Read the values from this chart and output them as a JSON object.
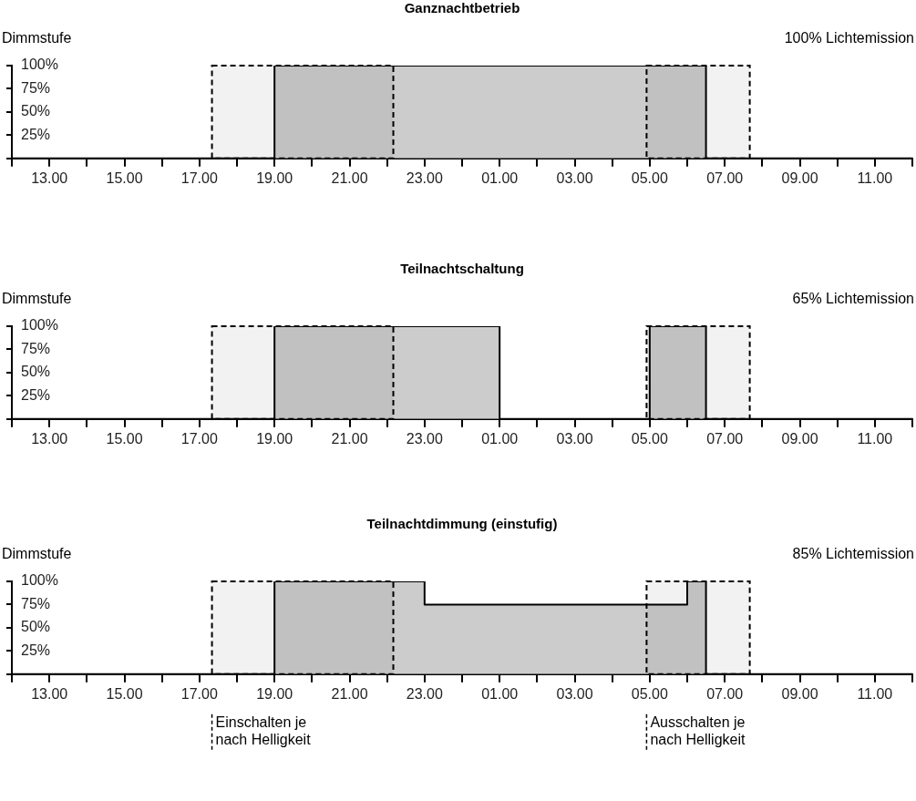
{
  "chart_data": [
    {
      "type": "area",
      "title": "Ganznachtbetrieb",
      "ylabel": "Dimmstufe",
      "annotations": [
        "100% Lichtemission"
      ],
      "x": [
        "2000-01-01T12:00",
        "2000-01-01T19:00",
        "2000-01-01T19:00",
        "2000-01-02T06:30",
        "2000-01-02T06:30",
        "2000-01-02T12:00"
      ],
      "series": [
        {
          "color": "#cccccc",
          "values": [
            0,
            0,
            100,
            100,
            0,
            0
          ]
        }
      ],
      "xlim": [
        "2000-01-01T12:00",
        "2000-01-02T12:00"
      ],
      "ylim": [
        0,
        100
      ],
      "xticks": [
        {
          "value": "2000-01-01T12:00",
          "label": null
        },
        {
          "value": "2000-01-01T13:00",
          "label": "13.00"
        },
        {
          "value": "2000-01-01T14:00",
          "label": null
        },
        {
          "value": "2000-01-01T15:00",
          "label": "15.00"
        },
        {
          "value": "2000-01-01T16:00",
          "label": null
        },
        {
          "value": "2000-01-01T17:00",
          "label": "17.00"
        },
        {
          "value": "2000-01-01T18:00",
          "label": null
        },
        {
          "value": "2000-01-01T19:00",
          "label": "19.00"
        },
        {
          "value": "2000-01-01T20:00",
          "label": null
        },
        {
          "value": "2000-01-01T21:00",
          "label": "21.00"
        },
        {
          "value": "2000-01-01T22:00",
          "label": null
        },
        {
          "value": "2000-01-01T23:00",
          "label": "23.00"
        },
        {
          "value": "2000-01-02T00:00",
          "label": null
        },
        {
          "value": "2000-01-02T01:00",
          "label": "01.00"
        },
        {
          "value": "2000-01-02T02:00",
          "label": null
        },
        {
          "value": "2000-01-02T03:00",
          "label": "03.00"
        },
        {
          "value": "2000-01-02T04:00",
          "label": null
        },
        {
          "value": "2000-01-02T05:00",
          "label": "05.00"
        },
        {
          "value": "2000-01-02T06:00",
          "label": null
        },
        {
          "value": "2000-01-02T07:00",
          "label": "07.00"
        },
        {
          "value": "2000-01-02T08:00",
          "label": null
        },
        {
          "value": "2000-01-02T09:00",
          "label": "09.00"
        },
        {
          "value": "2000-01-02T10:00",
          "label": null
        },
        {
          "value": "2000-01-02T11:00",
          "label": "11.00"
        },
        {
          "value": "2000-01-02T12:00",
          "label": null
        }
      ],
      "yticks": [
        {
          "value": 0,
          "label": null
        },
        {
          "value": 25,
          "label": "25%"
        },
        {
          "value": 50,
          "label": "50%"
        },
        {
          "value": 75,
          "label": "75%"
        },
        {
          "value": 100,
          "label": "100%"
        }
      ],
      "bands": [
        {
          "axis": "x",
          "from": "2000-01-01T17:20",
          "to": "2000-01-01T22:10"
        },
        {
          "axis": "x",
          "from": "2000-01-02T04:55",
          "to": "2000-01-02T07:40"
        }
      ],
      "grid": false,
      "legend": false
    },
    {
      "type": "area",
      "title": "Teilnachtschaltung",
      "ylabel": "Dimmstufe",
      "annotations": [
        "65% Lichtemission"
      ],
      "x": [
        "2000-01-01T12:00",
        "2000-01-01T19:00",
        "2000-01-01T19:00",
        "2000-01-02T01:00",
        "2000-01-02T01:00",
        "2000-01-02T05:00",
        "2000-01-02T05:00",
        "2000-01-02T06:30",
        "2000-01-02T06:30",
        "2000-01-02T12:00"
      ],
      "series": [
        {
          "color": "#cccccc",
          "values": [
            0,
            0,
            100,
            100,
            0,
            0,
            100,
            100,
            0,
            0
          ]
        }
      ],
      "xlim": [
        "2000-01-01T12:00",
        "2000-01-02T12:00"
      ],
      "ylim": [
        0,
        100
      ],
      "xticks": [
        {
          "value": "2000-01-01T12:00",
          "label": null
        },
        {
          "value": "2000-01-01T13:00",
          "label": "13.00"
        },
        {
          "value": "2000-01-01T14:00",
          "label": null
        },
        {
          "value": "2000-01-01T15:00",
          "label": "15.00"
        },
        {
          "value": "2000-01-01T16:00",
          "label": null
        },
        {
          "value": "2000-01-01T17:00",
          "label": "17.00"
        },
        {
          "value": "2000-01-01T18:00",
          "label": null
        },
        {
          "value": "2000-01-01T19:00",
          "label": "19.00"
        },
        {
          "value": "2000-01-01T20:00",
          "label": null
        },
        {
          "value": "2000-01-01T21:00",
          "label": "21.00"
        },
        {
          "value": "2000-01-01T22:00",
          "label": null
        },
        {
          "value": "2000-01-01T23:00",
          "label": "23.00"
        },
        {
          "value": "2000-01-02T00:00",
          "label": null
        },
        {
          "value": "2000-01-02T01:00",
          "label": "01.00"
        },
        {
          "value": "2000-01-02T02:00",
          "label": null
        },
        {
          "value": "2000-01-02T03:00",
          "label": "03.00"
        },
        {
          "value": "2000-01-02T04:00",
          "label": null
        },
        {
          "value": "2000-01-02T05:00",
          "label": "05.00"
        },
        {
          "value": "2000-01-02T06:00",
          "label": null
        },
        {
          "value": "2000-01-02T07:00",
          "label": "07.00"
        },
        {
          "value": "2000-01-02T08:00",
          "label": null
        },
        {
          "value": "2000-01-02T09:00",
          "label": "09.00"
        },
        {
          "value": "2000-01-02T10:00",
          "label": null
        },
        {
          "value": "2000-01-02T11:00",
          "label": "11.00"
        },
        {
          "value": "2000-01-02T12:00",
          "label": null
        }
      ],
      "yticks": [
        {
          "value": 0,
          "label": null
        },
        {
          "value": 25,
          "label": "25%"
        },
        {
          "value": 50,
          "label": "50%"
        },
        {
          "value": 75,
          "label": "75%"
        },
        {
          "value": 100,
          "label": "100%"
        }
      ],
      "bands": [
        {
          "axis": "x",
          "from": "2000-01-01T17:20",
          "to": "2000-01-01T22:10"
        },
        {
          "axis": "x",
          "from": "2000-01-02T04:55",
          "to": "2000-01-02T07:40"
        }
      ],
      "grid": false,
      "legend": false
    },
    {
      "type": "area",
      "title": "Teilnachtdimmung (einstufig)",
      "ylabel": "Dimmstufe",
      "annotations": [
        "85% Lichtemission",
        "Einschalten je nach Helligkeit",
        "Ausschalten je nach Helligkeit"
      ],
      "x": [
        "2000-01-01T12:00",
        "2000-01-01T19:00",
        "2000-01-01T19:00",
        "2000-01-01T23:00",
        "2000-01-01T23:00",
        "2000-01-02T06:00",
        "2000-01-02T06:00",
        "2000-01-02T06:30",
        "2000-01-02T06:30",
        "2000-01-02T12:00"
      ],
      "series": [
        {
          "color": "#cccccc",
          "values": [
            0,
            0,
            100,
            100,
            75,
            75,
            100,
            100,
            0,
            0
          ]
        }
      ],
      "xlim": [
        "2000-01-01T12:00",
        "2000-01-02T12:00"
      ],
      "ylim": [
        0,
        100
      ],
      "xticks": [
        {
          "value": "2000-01-01T12:00",
          "label": null
        },
        {
          "value": "2000-01-01T13:00",
          "label": "13.00"
        },
        {
          "value": "2000-01-01T14:00",
          "label": null
        },
        {
          "value": "2000-01-01T15:00",
          "label": "15.00"
        },
        {
          "value": "2000-01-01T16:00",
          "label": null
        },
        {
          "value": "2000-01-01T17:00",
          "label": "17.00"
        },
        {
          "value": "2000-01-01T18:00",
          "label": null
        },
        {
          "value": "2000-01-01T19:00",
          "label": "19.00"
        },
        {
          "value": "2000-01-01T20:00",
          "label": null
        },
        {
          "value": "2000-01-01T21:00",
          "label": "21.00"
        },
        {
          "value": "2000-01-01T22:00",
          "label": null
        },
        {
          "value": "2000-01-01T23:00",
          "label": "23.00"
        },
        {
          "value": "2000-01-02T00:00",
          "label": null
        },
        {
          "value": "2000-01-02T01:00",
          "label": "01.00"
        },
        {
          "value": "2000-01-02T02:00",
          "label": null
        },
        {
          "value": "2000-01-02T03:00",
          "label": "03.00"
        },
        {
          "value": "2000-01-02T04:00",
          "label": null
        },
        {
          "value": "2000-01-02T05:00",
          "label": "05.00"
        },
        {
          "value": "2000-01-02T06:00",
          "label": null
        },
        {
          "value": "2000-01-02T07:00",
          "label": "07.00"
        },
        {
          "value": "2000-01-02T08:00",
          "label": null
        },
        {
          "value": "2000-01-02T09:00",
          "label": "09.00"
        },
        {
          "value": "2000-01-02T10:00",
          "label": null
        },
        {
          "value": "2000-01-02T11:00",
          "label": "11.00"
        },
        {
          "value": "2000-01-02T12:00",
          "label": null
        }
      ],
      "yticks": [
        {
          "value": 0,
          "label": null
        },
        {
          "value": 25,
          "label": "25%"
        },
        {
          "value": 50,
          "label": "50%"
        },
        {
          "value": 75,
          "label": "75%"
        },
        {
          "value": 100,
          "label": "100%"
        }
      ],
      "bands": [
        {
          "axis": "x",
          "from": "2000-01-01T17:20",
          "to": "2000-01-01T22:10"
        },
        {
          "axis": "x",
          "from": "2000-01-02T04:55",
          "to": "2000-01-02T07:40"
        }
      ],
      "grid": false,
      "legend": false
    }
  ]
}
